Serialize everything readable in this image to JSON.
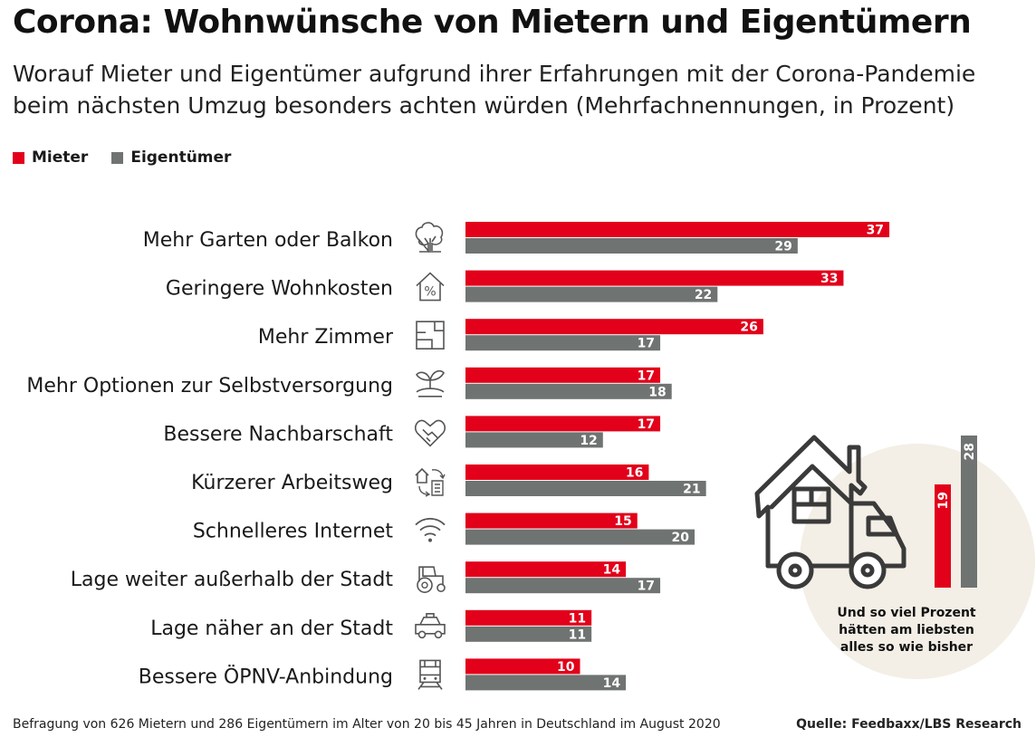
{
  "title": "Corona: Wohnwünsche von Mietern und Eigentümern",
  "subtitle": "Worauf Mieter und Eigentümer aufgrund ihrer Erfahrungen mit der Corona-Pandemie beim nächsten Umzug besonders achten würden (Mehrfachnennungen, in Prozent)",
  "legend": {
    "mieter": "Mieter",
    "eigentuemer": "Eigentümer"
  },
  "colors": {
    "mieter": "#e2001a",
    "eigentuemer": "#6f7372",
    "circle": "#f3efe6",
    "icon": "#555555"
  },
  "chart_data": [
    {
      "type": "bar",
      "orientation": "horizontal",
      "categories": [
        "Mehr Garten oder Balkon",
        "Geringere Wohnkosten",
        "Mehr Zimmer",
        "Mehr Optionen zur Selbstversorgung",
        "Bessere Nachbarschaft",
        "Kürzerer Arbeitsweg",
        "Schnelleres Internet",
        "Lage weiter außerhalb der Stadt",
        "Lage näher an der Stadt",
        "Bessere ÖPNV-Anbindung"
      ],
      "icons": [
        "tree-icon",
        "house-percent-icon",
        "floorplan-icon",
        "plant-icon",
        "heart-handshake-icon",
        "commute-icon",
        "wifi-icon",
        "tractor-icon",
        "taxi-icon",
        "train-icon"
      ],
      "series": [
        {
          "name": "Mieter",
          "values": [
            37,
            33,
            26,
            17,
            17,
            16,
            15,
            14,
            11,
            10
          ]
        },
        {
          "name": "Eigentümer",
          "values": [
            29,
            22,
            17,
            18,
            12,
            21,
            20,
            17,
            11,
            14
          ]
        }
      ]
    },
    {
      "type": "bar",
      "orientation": "vertical",
      "categories": [
        "Mieter",
        "Eigentümer"
      ],
      "values": [
        19,
        28
      ],
      "annotation": "Und so viel Prozent hätten am liebsten alles so wie bisher"
    }
  ],
  "footer": "Befragung von 626 Mietern und 286 Eigentümern im Alter von 20 bis 45 Jahren in Deutschland im August 2020",
  "source": "Quelle: Feedbaxx/LBS Research"
}
